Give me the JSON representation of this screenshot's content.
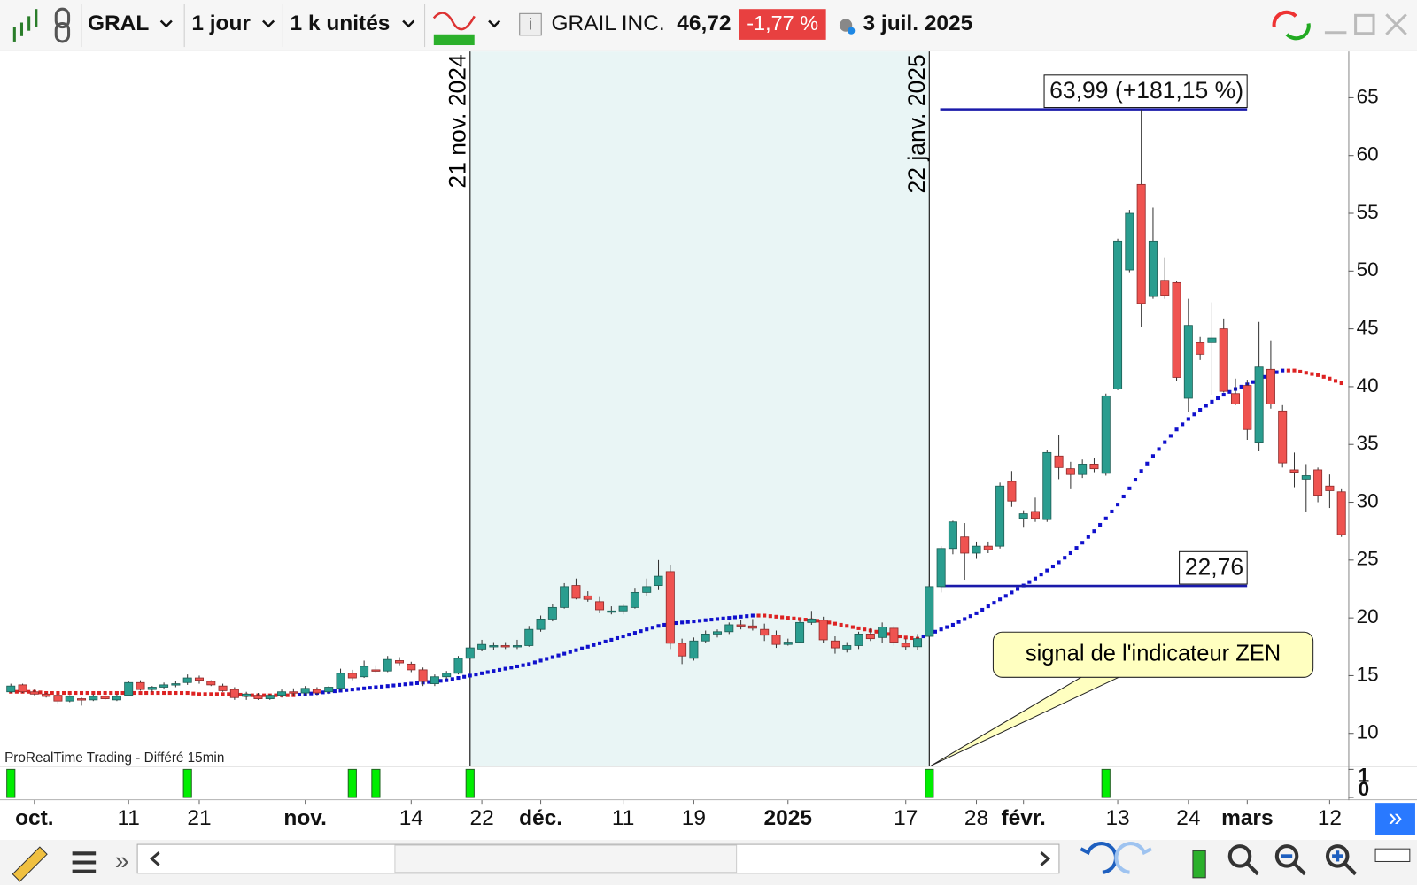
{
  "toolbar": {
    "symbol": "GRAL",
    "period": "1 jour",
    "units": "1 k unités",
    "name": "GRAIL INC.",
    "price": "46,72",
    "change": "-1,77 %",
    "date": "3 juil. 2025"
  },
  "watermark": "ProRealTime Trading - Différé 15min",
  "chart_data": [
    {
      "type": "candlestick",
      "categories": [
        null,
        null,
        "oct.",
        null,
        null,
        null,
        null,
        null,
        null,
        null,
        "11",
        null,
        null,
        null,
        null,
        null,
        "21",
        null,
        null,
        null,
        null,
        null,
        null,
        null,
        null,
        "nov.",
        null,
        null,
        null,
        null,
        null,
        null,
        null,
        null,
        "14",
        null,
        null,
        null,
        null,
        null,
        "22",
        null,
        null,
        null,
        null,
        "déc.",
        null,
        null,
        null,
        null,
        null,
        null,
        "11",
        null,
        null,
        null,
        null,
        null,
        "19",
        null,
        null,
        null,
        null,
        null,
        null,
        null,
        "2025",
        null,
        null,
        null,
        null,
        null,
        null,
        null,
        null,
        null,
        "17",
        null,
        null,
        null,
        null,
        null,
        "28",
        null,
        null,
        null,
        "févr.",
        null,
        null,
        null,
        null,
        null,
        null,
        null,
        "13",
        null,
        null,
        null,
        null,
        null,
        "24",
        null,
        null,
        null,
        null,
        "mars",
        null,
        null,
        null,
        null,
        null,
        null,
        "12",
        null
      ],
      "ohlc": [
        [
          13.6,
          14.3,
          13.5,
          14.1
        ],
        [
          14.2,
          14.3,
          13.5,
          13.6
        ],
        [
          13.6,
          13.8,
          13.3,
          13.4
        ],
        [
          13.4,
          13.5,
          13.1,
          13.2
        ],
        [
          13.3,
          13.4,
          12.6,
          12.8
        ],
        [
          12.8,
          13.3,
          12.7,
          13.2
        ],
        [
          13.0,
          13.1,
          12.4,
          12.9
        ],
        [
          12.9,
          13.4,
          12.8,
          13.2
        ],
        [
          13.2,
          13.3,
          12.9,
          13.0
        ],
        [
          12.9,
          13.4,
          12.8,
          13.2
        ],
        [
          13.3,
          14.5,
          13.3,
          14.4
        ],
        [
          14.4,
          14.6,
          13.7,
          13.8
        ],
        [
          13.8,
          14.1,
          13.6,
          14.0
        ],
        [
          14.0,
          14.4,
          13.8,
          14.2
        ],
        [
          14.2,
          14.5,
          14.0,
          14.3
        ],
        [
          14.4,
          15.1,
          14.2,
          14.8
        ],
        [
          14.8,
          15.0,
          14.3,
          14.6
        ],
        [
          14.5,
          14.6,
          14.1,
          14.2
        ],
        [
          14.1,
          14.3,
          13.6,
          13.7
        ],
        [
          13.8,
          14.0,
          12.9,
          13.1
        ],
        [
          13.2,
          13.6,
          12.9,
          13.4
        ],
        [
          13.3,
          13.5,
          12.9,
          13.0
        ],
        [
          13.0,
          13.4,
          12.9,
          13.3
        ],
        [
          13.3,
          13.8,
          13.1,
          13.6
        ],
        [
          13.6,
          13.9,
          13.2,
          13.5
        ],
        [
          13.5,
          14.1,
          13.3,
          13.9
        ],
        [
          13.8,
          14.0,
          13.3,
          13.5
        ],
        [
          13.6,
          14.1,
          13.4,
          14.0
        ],
        [
          13.9,
          15.6,
          13.7,
          15.2
        ],
        [
          15.2,
          15.5,
          14.6,
          14.8
        ],
        [
          14.9,
          16.3,
          14.8,
          15.8
        ],
        [
          15.5,
          15.9,
          15.2,
          15.4
        ],
        [
          15.4,
          16.7,
          15.3,
          16.4
        ],
        [
          16.3,
          16.6,
          15.9,
          16.1
        ],
        [
          16.0,
          16.2,
          15.3,
          15.5
        ],
        [
          15.5,
          15.7,
          14.1,
          14.5
        ],
        [
          14.3,
          15.1,
          14.1,
          14.9
        ],
        [
          14.9,
          15.4,
          14.7,
          15.2
        ],
        [
          15.2,
          16.7,
          15.1,
          16.5
        ],
        [
          16.5,
          17.6,
          16.4,
          17.4
        ],
        [
          17.3,
          18.1,
          17.1,
          17.7
        ],
        [
          17.6,
          17.9,
          17.2,
          17.6
        ],
        [
          17.6,
          17.9,
          17.3,
          17.5
        ],
        [
          17.5,
          18.1,
          17.3,
          17.6
        ],
        [
          17.6,
          19.3,
          17.5,
          19.0
        ],
        [
          19.0,
          20.2,
          18.8,
          19.9
        ],
        [
          19.9,
          21.2,
          19.7,
          20.9
        ],
        [
          20.9,
          23.0,
          20.8,
          22.7
        ],
        [
          22.8,
          23.4,
          21.6,
          21.7
        ],
        [
          21.9,
          22.3,
          21.4,
          21.6
        ],
        [
          21.4,
          21.8,
          20.4,
          20.7
        ],
        [
          20.6,
          21.0,
          20.3,
          20.6
        ],
        [
          20.6,
          21.2,
          20.3,
          21.0
        ],
        [
          20.9,
          22.6,
          20.8,
          22.2
        ],
        [
          22.2,
          23.4,
          21.9,
          22.7
        ],
        [
          22.8,
          25.0,
          22.4,
          23.6
        ],
        [
          24.0,
          24.6,
          17.3,
          17.8
        ],
        [
          17.8,
          18.2,
          16.0,
          16.7
        ],
        [
          16.5,
          18.3,
          16.3,
          18.0
        ],
        [
          18.0,
          18.9,
          17.8,
          18.6
        ],
        [
          18.6,
          19.0,
          18.3,
          18.8
        ],
        [
          18.8,
          19.6,
          18.6,
          19.4
        ],
        [
          19.4,
          19.8,
          19.0,
          19.3
        ],
        [
          19.3,
          19.9,
          18.9,
          19.1
        ],
        [
          19.0,
          19.5,
          18.0,
          18.5
        ],
        [
          18.5,
          18.9,
          17.4,
          17.7
        ],
        [
          17.7,
          18.2,
          17.6,
          17.9
        ],
        [
          17.9,
          19.8,
          17.8,
          19.6
        ],
        [
          19.6,
          20.6,
          19.4,
          19.9
        ],
        [
          19.8,
          20.1,
          17.8,
          18.1
        ],
        [
          18.0,
          18.4,
          16.9,
          17.4
        ],
        [
          17.3,
          17.9,
          17.0,
          17.6
        ],
        [
          17.6,
          18.8,
          17.3,
          18.6
        ],
        [
          18.6,
          19.1,
          18.0,
          18.2
        ],
        [
          18.3,
          19.6,
          17.8,
          19.2
        ],
        [
          19.1,
          19.3,
          17.6,
          17.9
        ],
        [
          17.8,
          18.2,
          17.2,
          17.5
        ],
        [
          17.5,
          18.6,
          17.2,
          18.2
        ],
        [
          18.4,
          22.9,
          18.3,
          22.7
        ],
        [
          22.7,
          26.2,
          22.2,
          26.0
        ],
        [
          26.0,
          28.4,
          25.5,
          28.3
        ],
        [
          27.0,
          28.2,
          23.3,
          25.6
        ],
        [
          25.6,
          26.6,
          25.1,
          26.2
        ],
        [
          26.2,
          26.6,
          25.6,
          25.9
        ],
        [
          26.2,
          31.7,
          26.0,
          31.4
        ],
        [
          31.8,
          32.7,
          29.6,
          30.1
        ],
        [
          28.6,
          29.3,
          27.8,
          29.0
        ],
        [
          29.2,
          30.4,
          28.3,
          28.6
        ],
        [
          28.5,
          34.5,
          28.3,
          34.3
        ],
        [
          34.0,
          35.8,
          32.0,
          33.0
        ],
        [
          32.9,
          33.5,
          31.2,
          32.4
        ],
        [
          32.4,
          33.7,
          32.1,
          33.3
        ],
        [
          33.3,
          33.8,
          32.6,
          32.9
        ],
        [
          32.5,
          39.4,
          32.3,
          39.2
        ],
        [
          39.8,
          52.8,
          39.7,
          52.6
        ],
        [
          50.1,
          55.3,
          49.9,
          55.0
        ],
        [
          57.5,
          63.99,
          45.2,
          47.2
        ],
        [
          47.8,
          55.5,
          47.6,
          52.6
        ],
        [
          49.2,
          51.2,
          47.6,
          47.9
        ],
        [
          49.0,
          49.1,
          40.5,
          40.8
        ],
        [
          39.0,
          47.6,
          37.8,
          45.3
        ],
        [
          43.8,
          44.3,
          42.3,
          42.8
        ],
        [
          43.8,
          47.3,
          39.3,
          44.2
        ],
        [
          45.0,
          45.9,
          39.5,
          39.6
        ],
        [
          39.4,
          40.7,
          38.4,
          38.5
        ],
        [
          40.1,
          40.6,
          35.4,
          36.3
        ],
        [
          35.2,
          45.6,
          34.4,
          41.7
        ],
        [
          41.5,
          44.0,
          38.1,
          38.5
        ],
        [
          37.9,
          38.4,
          33.0,
          33.4
        ],
        [
          32.8,
          34.3,
          31.3,
          32.6
        ],
        [
          32.0,
          33.3,
          29.2,
          32.3
        ],
        [
          32.8,
          33.0,
          30.0,
          30.6
        ],
        [
          31.4,
          32.4,
          29.5,
          31.0
        ],
        [
          30.9,
          31.2,
          27.0,
          27.2
        ]
      ],
      "up_color": "#2a9d8f",
      "down_color": "#ef5350",
      "indicator": {
        "up_color": "#1010cc",
        "down_color": "#dd2222",
        "values": [
          13.6,
          13.6,
          13.6,
          13.5,
          13.5,
          13.5,
          13.5,
          13.5,
          13.5,
          13.5,
          13.5,
          13.5,
          13.5,
          13.5,
          13.5,
          13.5,
          13.4,
          13.4,
          13.4,
          13.4,
          13.3,
          13.3,
          13.3,
          13.3,
          13.3,
          13.4,
          13.5,
          13.6,
          13.7,
          13.8,
          13.9,
          14.0,
          14.1,
          14.2,
          14.3,
          14.4,
          14.5,
          14.6,
          14.8,
          15.0,
          15.2,
          15.4,
          15.6,
          15.8,
          16.0,
          16.3,
          16.6,
          16.9,
          17.2,
          17.5,
          17.8,
          18.1,
          18.4,
          18.7,
          19.0,
          19.3,
          19.5,
          19.6,
          19.7,
          19.8,
          19.9,
          20.0,
          20.1,
          20.2,
          20.2,
          20.1,
          20.0,
          19.9,
          19.8,
          19.7,
          19.5,
          19.3,
          19.1,
          18.9,
          18.7,
          18.5,
          18.3,
          18.2,
          18.6,
          19.0,
          19.4,
          19.9,
          20.4,
          21.0,
          21.6,
          22.2,
          22.8,
          23.4,
          24.1,
          24.8,
          25.6,
          26.5,
          27.5,
          28.6,
          29.8,
          31.2,
          32.7,
          34.0,
          35.2,
          36.3,
          37.2,
          38.0,
          38.7,
          39.3,
          39.8,
          40.2,
          40.6,
          41.1,
          41.4,
          41.4,
          41.2,
          41.0,
          40.7,
          40.3
        ]
      },
      "ylim": [
        7.2,
        69
      ],
      "yticks": [
        10,
        15,
        20,
        25,
        30,
        35,
        40,
        45,
        50,
        55,
        60,
        65
      ],
      "date_lines": [
        {
          "index": 39,
          "label": "21 nov. 2024"
        },
        {
          "index": 78,
          "label": "22 janv. 2025"
        }
      ],
      "level_lines": [
        {
          "value": 63.99,
          "label": "63,99 (+181,15 %)"
        },
        {
          "value": 22.76,
          "label": "22,76"
        }
      ],
      "annotation": "signal de l'indicateur ZEN"
    },
    {
      "type": "bar",
      "color": "#00ee00",
      "ylim": [
        0,
        1
      ],
      "yticks": [
        0,
        1
      ],
      "values": [
        1,
        0,
        0,
        0,
        0,
        0,
        0,
        0,
        0,
        0,
        0,
        0,
        0,
        0,
        0,
        1,
        0,
        0,
        0,
        0,
        0,
        0,
        0,
        0,
        0,
        0,
        0,
        0,
        0,
        1,
        0,
        1,
        0,
        0,
        0,
        0,
        0,
        0,
        0,
        1,
        0,
        0,
        0,
        0,
        0,
        0,
        0,
        0,
        0,
        0,
        0,
        0,
        0,
        0,
        0,
        0,
        0,
        0,
        0,
        0,
        0,
        0,
        0,
        0,
        0,
        0,
        0,
        0,
        0,
        0,
        0,
        0,
        0,
        0,
        0,
        0,
        0,
        0,
        1,
        0,
        0,
        0,
        0,
        0,
        0,
        0,
        0,
        0,
        0,
        0,
        0,
        0,
        0,
        1,
        0,
        0,
        0,
        0,
        0,
        0,
        0,
        0,
        0,
        0,
        0,
        0,
        0,
        0,
        0,
        0,
        0,
        0,
        0,
        0
      ]
    }
  ]
}
